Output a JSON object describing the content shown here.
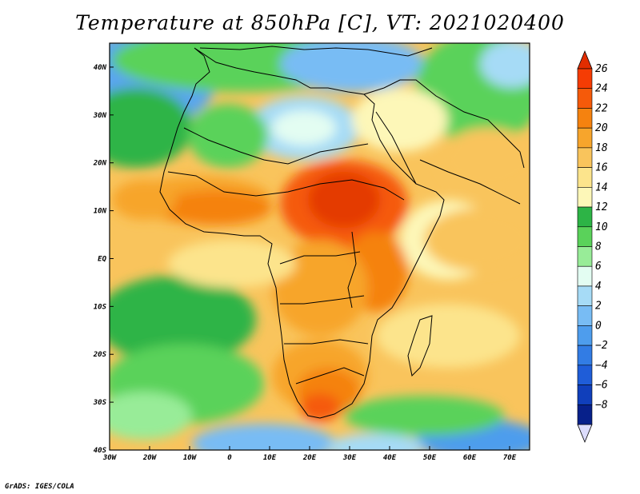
{
  "title": "Temperature at 850hPa [C], VT: 2021020400",
  "credit": "GrADS: IGES/COLA",
  "map": {
    "lon_range": [
      -30,
      75
    ],
    "lat_range": [
      -40,
      45
    ],
    "x_ticks": [
      {
        "v": -30,
        "label": "30W"
      },
      {
        "v": -20,
        "label": "20W"
      },
      {
        "v": -10,
        "label": "10W"
      },
      {
        "v": 0,
        "label": "0"
      },
      {
        "v": 10,
        "label": "10E"
      },
      {
        "v": 20,
        "label": "20E"
      },
      {
        "v": 30,
        "label": "30E"
      },
      {
        "v": 40,
        "label": "40E"
      },
      {
        "v": 50,
        "label": "50E"
      },
      {
        "v": 60,
        "label": "60E"
      },
      {
        "v": 70,
        "label": "70E"
      }
    ],
    "y_ticks": [
      {
        "v": 40,
        "label": "40N"
      },
      {
        "v": 30,
        "label": "30N"
      },
      {
        "v": 20,
        "label": "20N"
      },
      {
        "v": 10,
        "label": "10N"
      },
      {
        "v": 0,
        "label": "EQ"
      },
      {
        "v": -10,
        "label": "10S"
      },
      {
        "v": -20,
        "label": "20S"
      },
      {
        "v": -30,
        "label": "30S"
      },
      {
        "v": -40,
        "label": "40S"
      }
    ]
  },
  "colorbar": {
    "levels": [
      {
        "label": "26",
        "color": "#f53c04"
      },
      {
        "label": "24",
        "color": "#f55a0a"
      },
      {
        "label": "22",
        "color": "#f5820f"
      },
      {
        "label": "20",
        "color": "#f7a52c"
      },
      {
        "label": "18",
        "color": "#f9c45c"
      },
      {
        "label": "16",
        "color": "#fce48c"
      },
      {
        "label": "14",
        "color": "#fdf7b8"
      },
      {
        "label": "12",
        "color": "#2db446"
      },
      {
        "label": "10",
        "color": "#5ad25a"
      },
      {
        "label": "8",
        "color": "#98ec98"
      },
      {
        "label": "6",
        "color": "#e3fdf2"
      },
      {
        "label": "4",
        "color": "#a6dbf6"
      },
      {
        "label": "2",
        "color": "#78bcf4"
      },
      {
        "label": "0",
        "color": "#4e9ded"
      },
      {
        "label": "−2",
        "color": "#327ce4"
      },
      {
        "label": "−4",
        "color": "#1f5dd8"
      },
      {
        "label": "−6",
        "color": "#103fbb"
      },
      {
        "label": "−8",
        "color": "#07208a"
      }
    ],
    "top_color": "#e22d00",
    "bottom_color": "#dcdcfc"
  }
}
